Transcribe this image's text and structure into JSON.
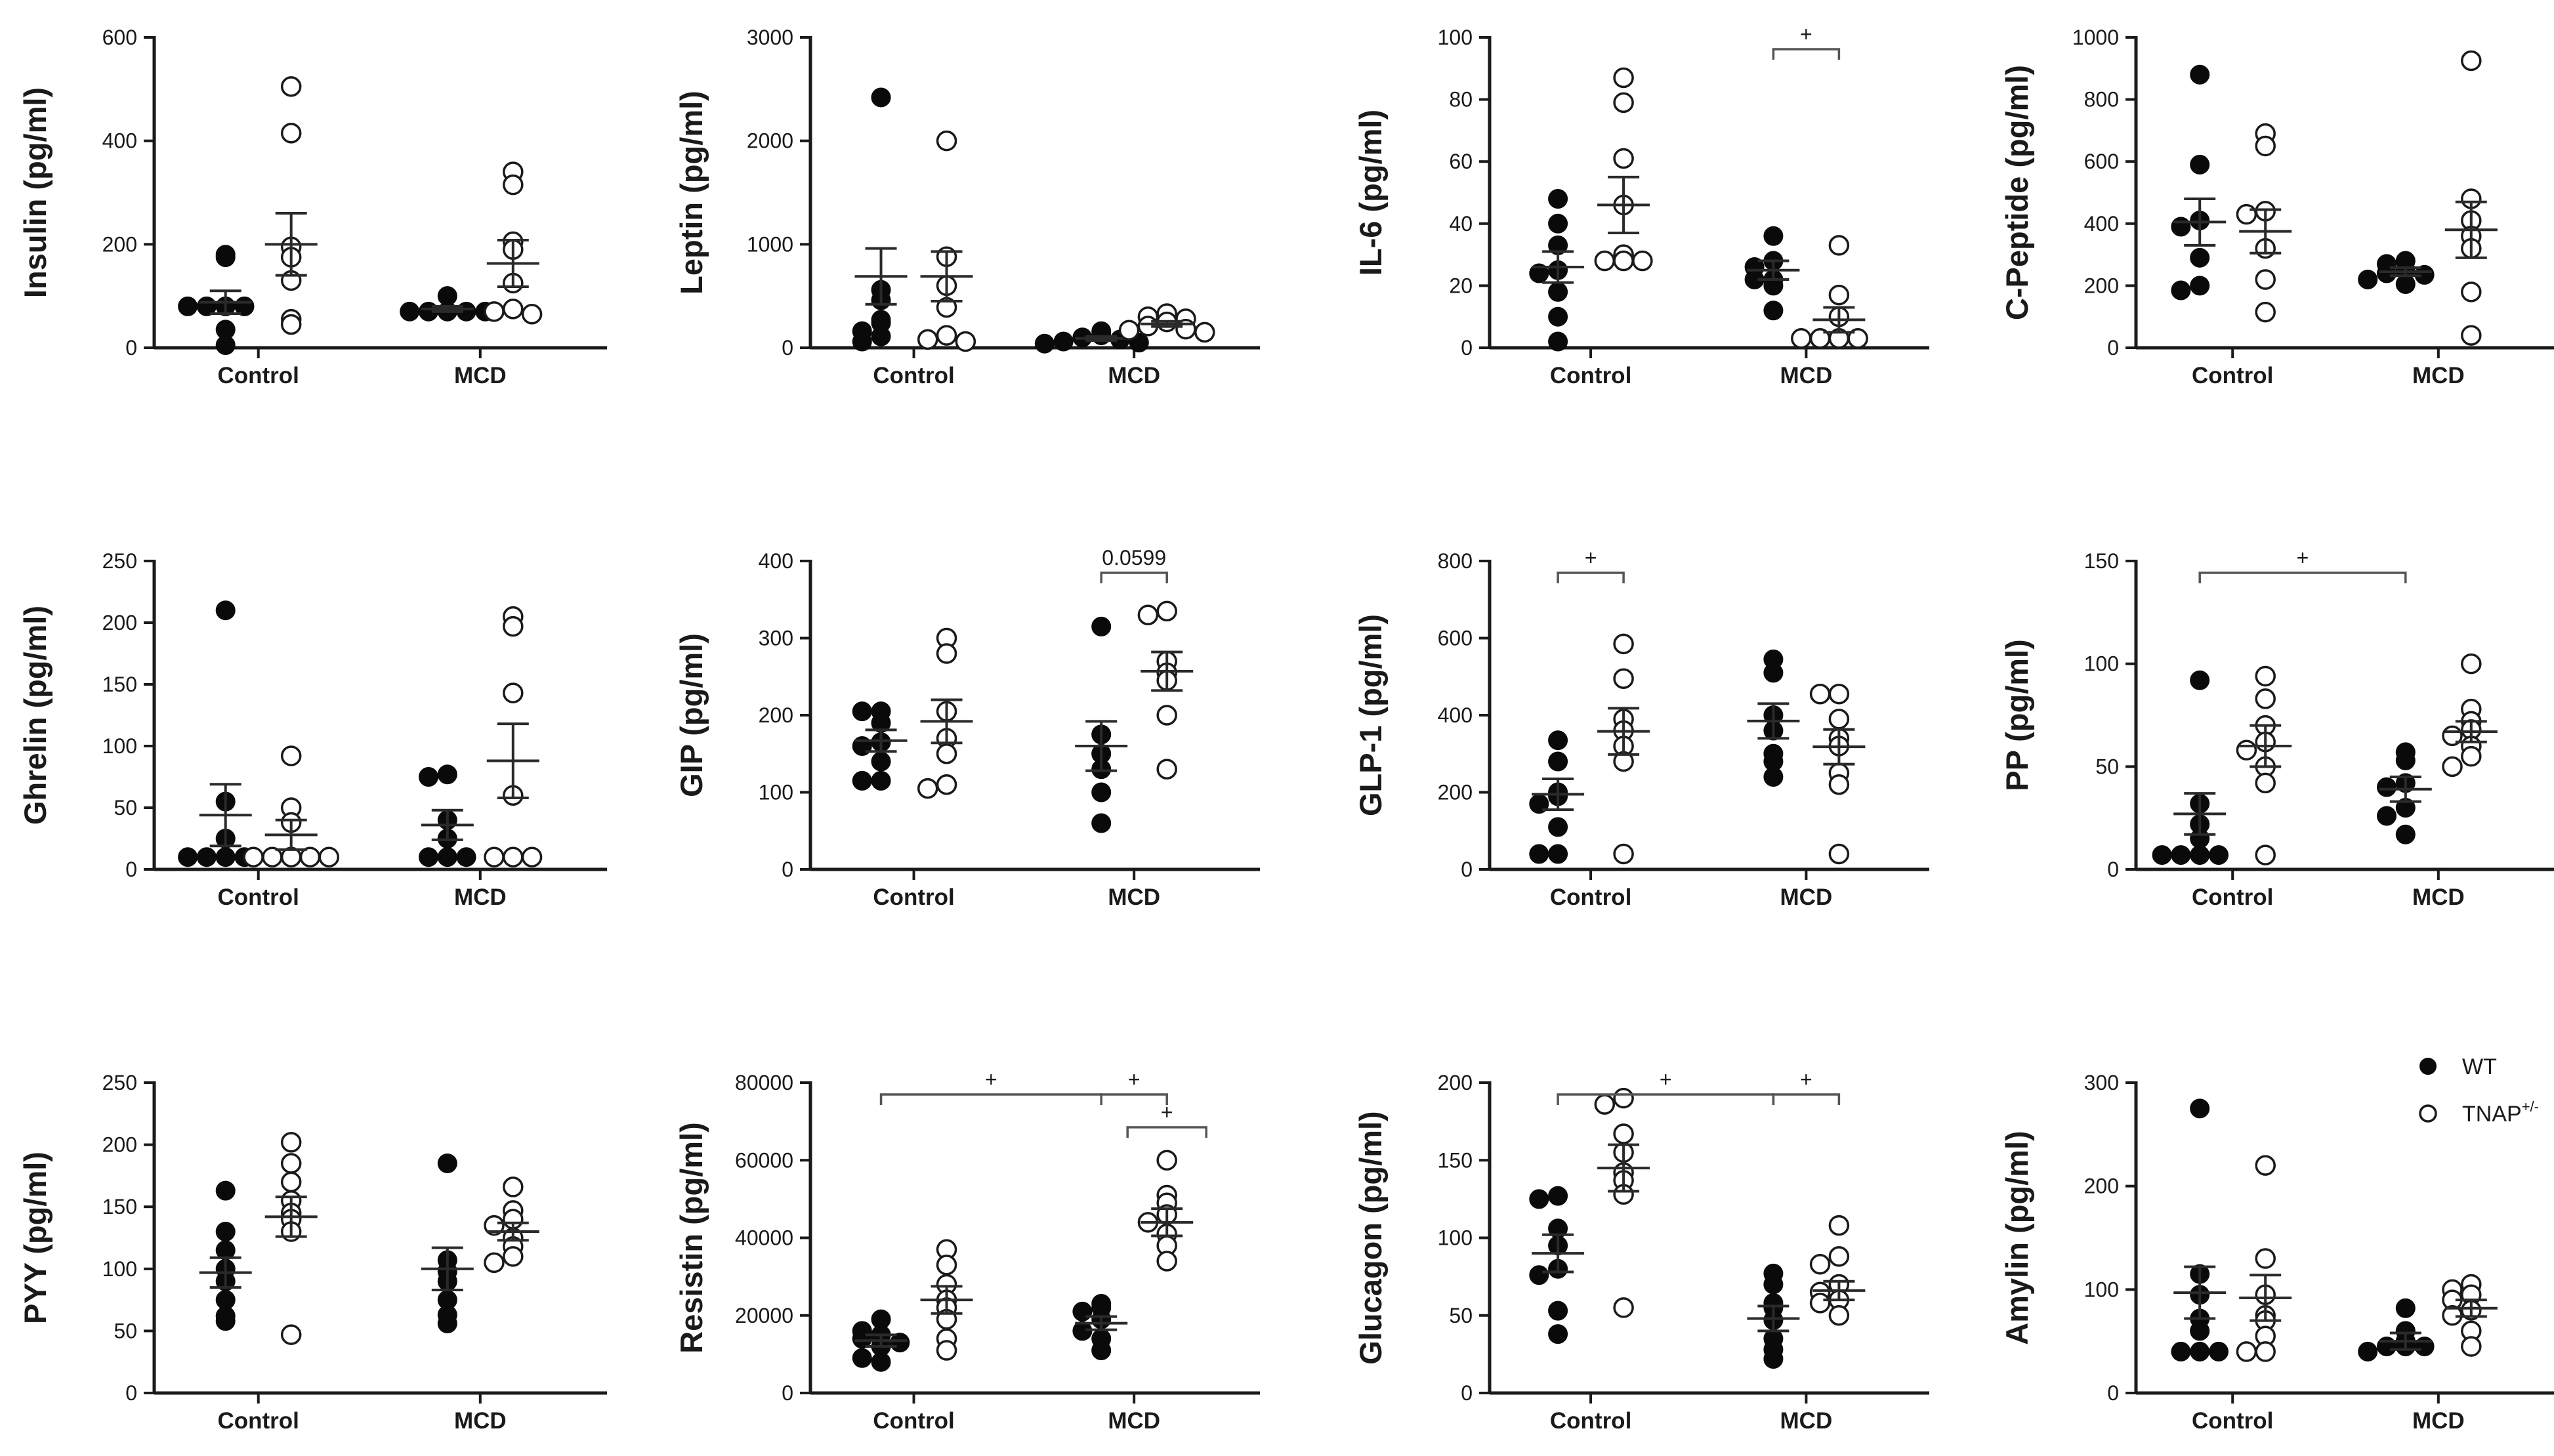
{
  "figure": {
    "legend": [
      {
        "label": "WT",
        "sup": "",
        "style": "filled"
      },
      {
        "label": "TNAP",
        "sup": "+/-",
        "style": "open"
      }
    ]
  },
  "chart_data": [
    {
      "type": "scatter",
      "ylabel": "Insulin (pg/ml)",
      "ylim": [
        0,
        600
      ],
      "yticks": [
        0,
        200,
        400,
        600
      ],
      "tick_labels": [
        "0",
        "200",
        "400",
        "600"
      ],
      "categories": [
        "Control",
        "MCD"
      ],
      "series": [
        {
          "name": "WT",
          "groups": [
            [
              175,
              180,
              80,
              80,
              80,
              80,
              35,
              5
            ],
            [
              100,
              70,
              70,
              70,
              70,
              70
            ]
          ],
          "mean": [
            88,
            75
          ],
          "sem": [
            22,
            5
          ]
        },
        {
          "name": "TNAP+/-",
          "groups": [
            [
              505,
              415,
              195,
              175,
              130,
              55,
              45
            ],
            [
              340,
              315,
              205,
              190,
              125,
              75,
              70,
              65
            ]
          ],
          "mean": [
            200,
            163
          ],
          "sem": [
            60,
            45
          ]
        }
      ],
      "annotations": []
    },
    {
      "type": "scatter",
      "ylabel": "Leptin (pg/ml)",
      "ylim": [
        0,
        3000
      ],
      "yticks": [
        0,
        1000,
        2000,
        3000
      ],
      "tick_labels": [
        "0",
        "1000",
        "2000",
        "3000"
      ],
      "categories": [
        "Control",
        "MCD"
      ],
      "series": [
        {
          "name": "WT",
          "groups": [
            [
              2420,
              560,
              460,
              270,
              240,
              160,
              110,
              60
            ],
            [
              160,
              120,
              100,
              80,
              60,
              50,
              40
            ]
          ],
          "mean": [
            690,
            90
          ],
          "sem": [
            270,
            20
          ]
        },
        {
          "name": "TNAP+/-",
          "groups": [
            [
              2000,
              880,
              600,
              390,
              120,
              80,
              60
            ],
            [
              330,
              300,
              280,
              250,
              210,
              180,
              170,
              150
            ]
          ],
          "mean": [
            690,
            230
          ],
          "sem": [
            240,
            25
          ]
        }
      ],
      "annotations": []
    },
    {
      "type": "scatter",
      "ylabel": "IL-6 (pg/ml)",
      "ylim": [
        0,
        100
      ],
      "yticks": [
        0,
        20,
        40,
        60,
        80,
        100
      ],
      "tick_labels": [
        "0",
        "20",
        "40",
        "60",
        "80",
        "100"
      ],
      "categories": [
        "Control",
        "MCD"
      ],
      "series": [
        {
          "name": "WT",
          "groups": [
            [
              48,
              40,
              33,
              25,
              24,
              18,
              10,
              2
            ],
            [
              36,
              28,
              26,
              22,
              22,
              20,
              12
            ]
          ],
          "mean": [
            26,
            25
          ],
          "sem": [
            5,
            3
          ]
        },
        {
          "name": "TNAP+/-",
          "groups": [
            [
              87,
              79,
              61,
              46,
              30,
              28,
              28,
              28
            ],
            [
              33,
              17,
              10,
              3,
              3,
              3,
              3
            ]
          ],
          "mean": [
            46,
            9
          ],
          "sem": [
            9,
            4
          ]
        }
      ],
      "annotations": [
        {
          "text": "+",
          "from": [
            1,
            0
          ],
          "to": [
            1,
            1
          ]
        }
      ]
    },
    {
      "type": "scatter",
      "ylabel": "C-Peptide (pg/ml)",
      "ylim": [
        0,
        1000
      ],
      "yticks": [
        0,
        200,
        400,
        600,
        800,
        1000
      ],
      "tick_labels": [
        "0",
        "200",
        "400",
        "600",
        "800",
        "1000"
      ],
      "categories": [
        "Control",
        "MCD"
      ],
      "series": [
        {
          "name": "WT",
          "groups": [
            [
              880,
              590,
              410,
              390,
              290,
              200,
              185
            ],
            [
              280,
              270,
              250,
              240,
              235,
              220,
              205
            ]
          ],
          "mean": [
            405,
            245
          ],
          "sem": [
            75,
            13
          ]
        },
        {
          "name": "TNAP+/-",
          "groups": [
            [
              690,
              650,
              440,
              430,
              320,
              220,
              115
            ],
            [
              925,
              480,
              410,
              360,
              320,
              180,
              40
            ]
          ],
          "mean": [
            375,
            380
          ],
          "sem": [
            70,
            90
          ]
        }
      ],
      "annotations": []
    },
    {
      "type": "scatter",
      "ylabel": "Ghrelin (pg/ml)",
      "ylim": [
        0,
        250
      ],
      "yticks": [
        0,
        50,
        100,
        150,
        200,
        250
      ],
      "tick_labels": [
        "0",
        "50",
        "100",
        "150",
        "200",
        "250"
      ],
      "categories": [
        "Control",
        "MCD"
      ],
      "series": [
        {
          "name": "WT",
          "groups": [
            [
              210,
              55,
              25,
              10,
              10,
              10,
              10
            ],
            [
              77,
              75,
              40,
              25,
              10,
              10,
              10
            ]
          ],
          "mean": [
            44,
            36
          ],
          "sem": [
            25,
            12
          ]
        },
        {
          "name": "TNAP+/-",
          "groups": [
            [
              92,
              50,
              38,
              10,
              10,
              10,
              10,
              10
            ],
            [
              205,
              197,
              143,
              60,
              10,
              10,
              10
            ]
          ],
          "mean": [
            28,
            88
          ],
          "sem": [
            12,
            30
          ]
        }
      ],
      "annotations": []
    },
    {
      "type": "scatter",
      "ylabel": "GIP (pg/ml)",
      "ylim": [
        0,
        400
      ],
      "yticks": [
        0,
        100,
        200,
        300,
        400
      ],
      "tick_labels": [
        "0",
        "100",
        "200",
        "300",
        "400"
      ],
      "categories": [
        "Control",
        "MCD"
      ],
      "series": [
        {
          "name": "WT",
          "groups": [
            [
              205,
              205,
              190,
              165,
              160,
              140,
              115,
              115
            ],
            [
              315,
              175,
              150,
              130,
              100,
              60
            ]
          ],
          "mean": [
            167,
            160
          ],
          "sem": [
            14,
            32
          ]
        },
        {
          "name": "TNAP+/-",
          "groups": [
            [
              300,
              280,
              205,
              170,
              150,
              110,
              105
            ],
            [
              335,
              330,
              270,
              255,
              245,
              200,
              130
            ]
          ],
          "mean": [
            192,
            257
          ],
          "sem": [
            28,
            25
          ]
        }
      ],
      "annotations": [
        {
          "text": "0.0599",
          "from": [
            1,
            0
          ],
          "to": [
            1,
            1
          ]
        }
      ]
    },
    {
      "type": "scatter",
      "ylabel": "GLP-1 (pg/ml)",
      "ylim": [
        0,
        800
      ],
      "yticks": [
        0,
        200,
        400,
        600,
        800
      ],
      "tick_labels": [
        "0",
        "200",
        "400",
        "600",
        "800"
      ],
      "categories": [
        "Control",
        "MCD"
      ],
      "series": [
        {
          "name": "WT",
          "groups": [
            [
              335,
              280,
              200,
              190,
              170,
              110,
              40,
              40
            ],
            [
              545,
              510,
              400,
              360,
              300,
              280,
              240
            ]
          ],
          "mean": [
            195,
            385
          ],
          "sem": [
            40,
            45
          ]
        },
        {
          "name": "TNAP+/-",
          "groups": [
            [
              585,
              495,
              390,
              360,
              320,
              280,
              40
            ],
            [
              455,
              455,
              390,
              340,
              320,
              250,
              220,
              40
            ]
          ],
          "mean": [
            358,
            318
          ],
          "sem": [
            60,
            45
          ]
        }
      ],
      "annotations": [
        {
          "text": "+",
          "from": [
            0,
            0
          ],
          "to": [
            0,
            1
          ]
        }
      ]
    },
    {
      "type": "scatter",
      "ylabel": "PP (pg/ml)",
      "ylim": [
        0,
        150
      ],
      "yticks": [
        0,
        50,
        100,
        150
      ],
      "tick_labels": [
        "0",
        "50",
        "100",
        "150"
      ],
      "categories": [
        "Control",
        "MCD"
      ],
      "series": [
        {
          "name": "WT",
          "groups": [
            [
              92,
              32,
              22,
              15,
              7,
              7,
              7,
              7
            ],
            [
              57,
              53,
              42,
              40,
              30,
              26,
              17
            ]
          ],
          "mean": [
            27,
            39
          ],
          "sem": [
            10,
            6
          ]
        },
        {
          "name": "TNAP+/-",
          "groups": [
            [
              94,
              83,
              70,
              62,
              58,
              50,
              42,
              7
            ],
            [
              100,
              78,
              72,
              68,
              65,
              60,
              55,
              50
            ]
          ],
          "mean": [
            60,
            67
          ],
          "sem": [
            10,
            5
          ]
        }
      ],
      "annotations": [
        {
          "text": "+",
          "from": [
            0,
            0
          ],
          "to": [
            1,
            0
          ]
        }
      ]
    },
    {
      "type": "scatter",
      "ylabel": "PYY (pg/ml)",
      "ylim": [
        0,
        250
      ],
      "yticks": [
        0,
        50,
        100,
        150,
        200,
        250
      ],
      "tick_labels": [
        "0",
        "50",
        "100",
        "150",
        "200",
        "250"
      ],
      "categories": [
        "Control",
        "MCD"
      ],
      "series": [
        {
          "name": "WT",
          "groups": [
            [
              163,
              130,
              115,
              100,
              90,
              75,
              62,
              58
            ],
            [
              185,
              107,
              98,
              90,
              75,
              63,
              56
            ]
          ],
          "mean": [
            97,
            100
          ],
          "sem": [
            12,
            17
          ]
        },
        {
          "name": "TNAP+/-",
          "groups": [
            [
              202,
              185,
              170,
              155,
              145,
              140,
              130,
              47
            ],
            [
              166,
              147,
              140,
              135,
              125,
              118,
              110,
              105
            ]
          ],
          "mean": [
            142,
            130
          ],
          "sem": [
            16,
            7
          ]
        }
      ],
      "annotations": []
    },
    {
      "type": "scatter",
      "ylabel": "Resistin (pg/ml)",
      "ylim": [
        0,
        80000
      ],
      "yticks": [
        0,
        20000,
        40000,
        60000,
        80000
      ],
      "tick_labels": [
        "0",
        "20000",
        "40000",
        "60000",
        "80000"
      ],
      "categories": [
        "Control",
        "MCD"
      ],
      "series": [
        {
          "name": "WT",
          "groups": [
            [
              19000,
              16000,
              15000,
              14000,
              13000,
              12000,
              9000,
              8000
            ],
            [
              23000,
              22000,
              21000,
              19000,
              16000,
              14000,
              11000
            ]
          ],
          "mean": [
            13500,
            18000
          ],
          "sem": [
            1500,
            1700
          ]
        },
        {
          "name": "TNAP+/-",
          "groups": [
            [
              37000,
              33000,
              28000,
              24000,
              22000,
              19000,
              14000,
              11000
            ],
            [
              60000,
              51000,
              49000,
              46000,
              44000,
              41000,
              38000,
              34000
            ]
          ],
          "mean": [
            24000,
            44000
          ],
          "sem": [
            3500,
            3500
          ]
        }
      ],
      "annotations": [
        {
          "text": "+",
          "from": [
            0,
            0
          ],
          "to": [
            1,
            0
          ]
        },
        {
          "text": "+",
          "from": [
            1,
            0
          ],
          "to": [
            1,
            1
          ]
        },
        {
          "text": "+",
          "from": [
            1,
            1
          ],
          "to": [
            1,
            1
          ]
        }
      ]
    },
    {
      "type": "scatter",
      "ylabel": "Glucagon (pg/ml)",
      "ylim": [
        0,
        200
      ],
      "yticks": [
        0,
        50,
        100,
        150,
        200
      ],
      "tick_labels": [
        "0",
        "50",
        "100",
        "150",
        "200"
      ],
      "categories": [
        "Control",
        "MCD"
      ],
      "series": [
        {
          "name": "WT",
          "groups": [
            [
              127,
              125,
              106,
              95,
              80,
              76,
              53,
              38
            ],
            [
              77,
              70,
              58,
              55,
              47,
              35,
              28,
              22
            ]
          ],
          "mean": [
            90,
            48
          ],
          "sem": [
            12,
            8
          ]
        },
        {
          "name": "TNAP+/-",
          "groups": [
            [
              190,
              186,
              167,
              155,
              142,
              137,
              128,
              55
            ],
            [
              108,
              88,
              83,
              70,
              65,
              60,
              58,
              50
            ]
          ],
          "mean": [
            145,
            66
          ],
          "sem": [
            15,
            6
          ]
        }
      ],
      "annotations": [
        {
          "text": "+",
          "from": [
            0,
            0
          ],
          "to": [
            1,
            0
          ]
        },
        {
          "text": "+",
          "from": [
            1,
            0
          ],
          "to": [
            1,
            1
          ]
        }
      ]
    },
    {
      "type": "scatter",
      "ylabel": "Amylin (pg/ml)",
      "ylim": [
        0,
        300
      ],
      "yticks": [
        0,
        100,
        200,
        300
      ],
      "tick_labels": [
        "0",
        "100",
        "200",
        "300"
      ],
      "categories": [
        "Control",
        "MCD"
      ],
      "series": [
        {
          "name": "WT",
          "groups": [
            [
              275,
              115,
              95,
              72,
              60,
              40,
              40,
              40
            ],
            [
              82,
              60,
              50,
              45,
              45,
              45,
              40
            ]
          ],
          "mean": [
            97,
            50
          ],
          "sem": [
            25,
            8
          ]
        },
        {
          "name": "TNAP+/-",
          "groups": [
            [
              220,
              130,
              95,
              75,
              70,
              55,
              40,
              40
            ],
            [
              105,
              100,
              95,
              90,
              80,
              75,
              60,
              45
            ]
          ],
          "mean": [
            92,
            82
          ],
          "sem": [
            22,
            8
          ]
        }
      ],
      "annotations": []
    }
  ]
}
